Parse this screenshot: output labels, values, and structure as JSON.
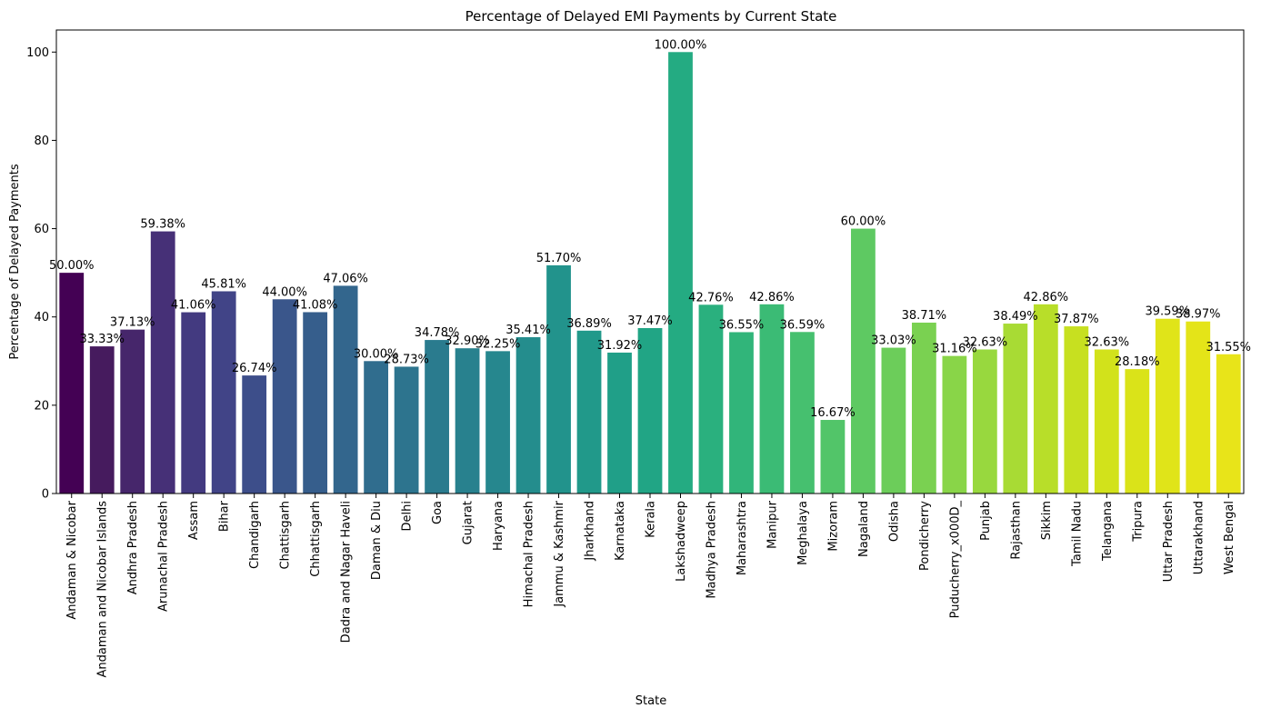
{
  "chart_data": {
    "type": "bar",
    "title": "Percentage of Delayed EMI Payments by Current State",
    "xlabel": "State",
    "ylabel": "Percentage of Delayed Payments",
    "ylim": [
      0,
      105
    ],
    "yticks": [
      0,
      20,
      40,
      60,
      80,
      100
    ],
    "grid": false,
    "legend": "none",
    "palette": "viridis",
    "categories": [
      "Andaman & Nicobar",
      "Andaman and Nicobar Islands",
      "Andhra Pradesh",
      "Arunachal Pradesh",
      "Assam",
      "Bihar",
      "Chandigarh",
      "Chattisgarh",
      "Chhattisgarh",
      "Dadra and Nagar Haveli",
      "Daman & Diu",
      "Delhi",
      "Goa",
      "Gujarat",
      "Haryana",
      "Himachal Pradesh",
      "Jammu & Kashmir",
      "Jharkhand",
      "Karnataka",
      "Kerala",
      "Lakshadweep",
      "Madhya Pradesh",
      "Maharashtra",
      "Manipur",
      "Meghalaya",
      "Mizoram",
      "Nagaland",
      "Odisha",
      "Pondicherry",
      "Puducherry_x000D_",
      "Punjab",
      "Rajasthan",
      "Sikkim",
      "Tamil Nadu",
      "Telangana",
      "Tripura",
      "Uttar Pradesh",
      "Uttarakhand",
      "West Bengal"
    ],
    "values": [
      50.0,
      33.33,
      37.13,
      59.38,
      41.06,
      45.81,
      26.74,
      44.0,
      41.08,
      47.06,
      30.0,
      28.73,
      34.78,
      32.9,
      32.25,
      35.41,
      51.7,
      36.89,
      31.92,
      37.47,
      100.0,
      42.76,
      36.55,
      42.86,
      36.59,
      16.67,
      60.0,
      33.03,
      38.71,
      31.16,
      32.63,
      38.49,
      42.86,
      37.87,
      32.63,
      28.18,
      39.59,
      38.97,
      31.55
    ],
    "data_labels": [
      "50.00%",
      "33.33%",
      "37.13%",
      "59.38%",
      "41.06%",
      "45.81%",
      "26.74%",
      "44.00%",
      "41.08%",
      "47.06%",
      "30.00%",
      "28.73%",
      "34.78%",
      "32.90%",
      "32.25%",
      "35.41%",
      "51.70%",
      "36.89%",
      "31.92%",
      "37.47%",
      "100.00%",
      "42.76%",
      "36.55%",
      "42.86%",
      "36.59%",
      "16.67%",
      "60.00%",
      "33.03%",
      "38.71%",
      "31.16%",
      "32.63%",
      "38.49%",
      "42.86%",
      "37.87%",
      "32.63%",
      "28.18%",
      "39.59%",
      "38.97%",
      "31.55%"
    ],
    "colors": [
      "#440154",
      "#461b5e",
      "#46266b",
      "#463077",
      "#433a80",
      "#414487",
      "#3d4e8a",
      "#3a568b",
      "#365e8c",
      "#33668d",
      "#306d8e",
      "#2d748e",
      "#2a7b8e",
      "#28818e",
      "#26878e",
      "#248d8d",
      "#22938c",
      "#21998a",
      "#209f88",
      "#21a585",
      "#24ab82",
      "#2ab07e",
      "#31b57a",
      "#3bbb75",
      "#46c06f",
      "#52c569",
      "#5ec962",
      "#6ccd5a",
      "#7ad151",
      "#89d548",
      "#98d83e",
      "#a8db34",
      "#b8de29",
      "#c7e020",
      "#d2e21b",
      "#dae319",
      "#e0e419",
      "#e4e418",
      "#e8e419"
    ]
  }
}
